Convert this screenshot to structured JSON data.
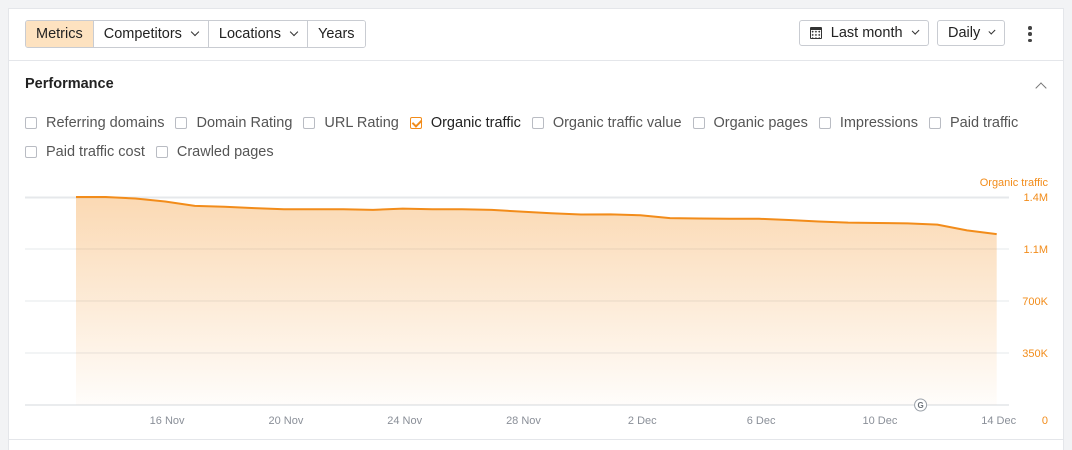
{
  "toolbar": {
    "tabs": [
      {
        "label": "Metrics",
        "active": true,
        "dropdown": false
      },
      {
        "label": "Competitors",
        "active": false,
        "dropdown": true
      },
      {
        "label": "Locations",
        "active": false,
        "dropdown": true
      },
      {
        "label": "Years",
        "active": false,
        "dropdown": false
      }
    ],
    "date_range": {
      "label": "Last month",
      "icon": "calendar-icon"
    },
    "interval": {
      "label": "Daily"
    },
    "more_icon": "more-vertical-icon"
  },
  "performance": {
    "title": "Performance",
    "collapse_icon": "chevron-up-icon",
    "metrics": [
      {
        "label": "Referring domains",
        "checked": false
      },
      {
        "label": "Domain Rating",
        "checked": false
      },
      {
        "label": "URL Rating",
        "checked": false
      },
      {
        "label": "Organic traffic",
        "checked": true
      },
      {
        "label": "Organic traffic value",
        "checked": false
      },
      {
        "label": "Organic pages",
        "checked": false
      },
      {
        "label": "Impressions",
        "checked": false
      },
      {
        "label": "Paid traffic",
        "checked": false
      },
      {
        "label": "Paid traffic cost",
        "checked": false
      },
      {
        "label": "Crawled pages",
        "checked": false
      }
    ]
  },
  "colors": {
    "accent": "#f28c1a",
    "active_tab_bg": "#fde2c0",
    "grid": "#e6e8eb",
    "tick_text": "#8a8f98"
  },
  "chart_data": {
    "type": "area",
    "series": [
      {
        "name": "Organic traffic",
        "color": "#f28c1a",
        "x": [
          "Nov 13",
          "Nov 14",
          "Nov 15",
          "Nov 16",
          "Nov 17",
          "Nov 18",
          "Nov 19",
          "Nov 20",
          "Nov 21",
          "Nov 22",
          "Nov 23",
          "Nov 24",
          "Nov 25",
          "Nov 26",
          "Nov 27",
          "Nov 28",
          "Nov 29",
          "Nov 30",
          "Dec 1",
          "Dec 2",
          "Dec 3",
          "Dec 4",
          "Dec 5",
          "Dec 6",
          "Dec 7",
          "Dec 8",
          "Dec 9",
          "Dec 10",
          "Dec 11",
          "Dec 12",
          "Dec 13",
          "Dec 14"
        ],
        "values": [
          1.4,
          1.4,
          1.39,
          1.37,
          1.34,
          1.335,
          1.325,
          1.318,
          1.317,
          1.318,
          1.313,
          1.322,
          1.318,
          1.317,
          1.313,
          1.302,
          1.29,
          1.282,
          1.283,
          1.277,
          1.258,
          1.255,
          1.253,
          1.253,
          1.245,
          1.235,
          1.228,
          1.225,
          1.222,
          1.214,
          1.175,
          1.15
        ]
      }
    ],
    "series_label": "Organic traffic",
    "x_ticks": [
      "16 Nov",
      "20 Nov",
      "24 Nov",
      "28 Nov",
      "2 Dec",
      "6 Dec",
      "10 Dec",
      "14 Dec"
    ],
    "y_ticks": [
      "0",
      "350K",
      "700K",
      "1.1M",
      "1.4M"
    ],
    "y_tick_values": [
      0,
      0.35,
      0.7,
      1.05,
      1.4
    ],
    "y_unit": "M",
    "ylim": [
      0,
      1.55
    ],
    "grid": true,
    "y_axis_position": "right",
    "annotation_marker": "G"
  }
}
